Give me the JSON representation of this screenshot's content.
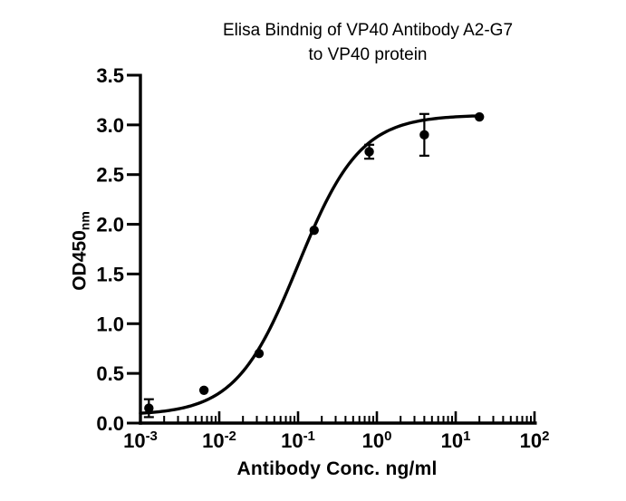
{
  "chart_data": {
    "type": "scatter",
    "title_lines": [
      "Elisa Bindnig of VP40 Antibody A2-G7",
      "to VP40 protein"
    ],
    "xlabel": "Antibody Conc. ng/ml",
    "ylabel": "OD450",
    "ylabel_subscript": "nm",
    "x_scale": "log10",
    "xlim": [
      0.001,
      100
    ],
    "ylim": [
      0.0,
      3.5
    ],
    "y_tick_labels": [
      "0.0",
      "0.5",
      "1.0",
      "1.5",
      "2.0",
      "2.5",
      "3.0",
      "3.5"
    ],
    "x_tick_base": "10",
    "x_tick_exponents": [
      "-3",
      "-2",
      "-1",
      "0",
      "1",
      "2"
    ],
    "grid": false,
    "legend": null,
    "marker_color": "#000000",
    "line_color": "#000000",
    "axis_color": "#000000",
    "background_color": "#ffffff",
    "points": [
      {
        "conc_ng_ml": 0.00128,
        "od450": 0.15,
        "err": 0.09
      },
      {
        "conc_ng_ml": 0.0064,
        "od450": 0.33,
        "err": 0
      },
      {
        "conc_ng_ml": 0.032,
        "od450": 0.7,
        "err": 0
      },
      {
        "conc_ng_ml": 0.16,
        "od450": 1.94,
        "err": 0
      },
      {
        "conc_ng_ml": 0.8,
        "od450": 2.73,
        "err": 0.07
      },
      {
        "conc_ng_ml": 4.0,
        "od450": 2.9,
        "err": 0.21
      },
      {
        "conc_ng_ml": 20.0,
        "od450": 3.08,
        "err": 0
      }
    ],
    "fit_curve": {
      "model": "4PL",
      "bottom": 0.08,
      "top": 3.1,
      "ec50_ng_ml": 0.1,
      "hill": 1.1,
      "x_start": 0.001,
      "x_end": 18.7
    }
  }
}
